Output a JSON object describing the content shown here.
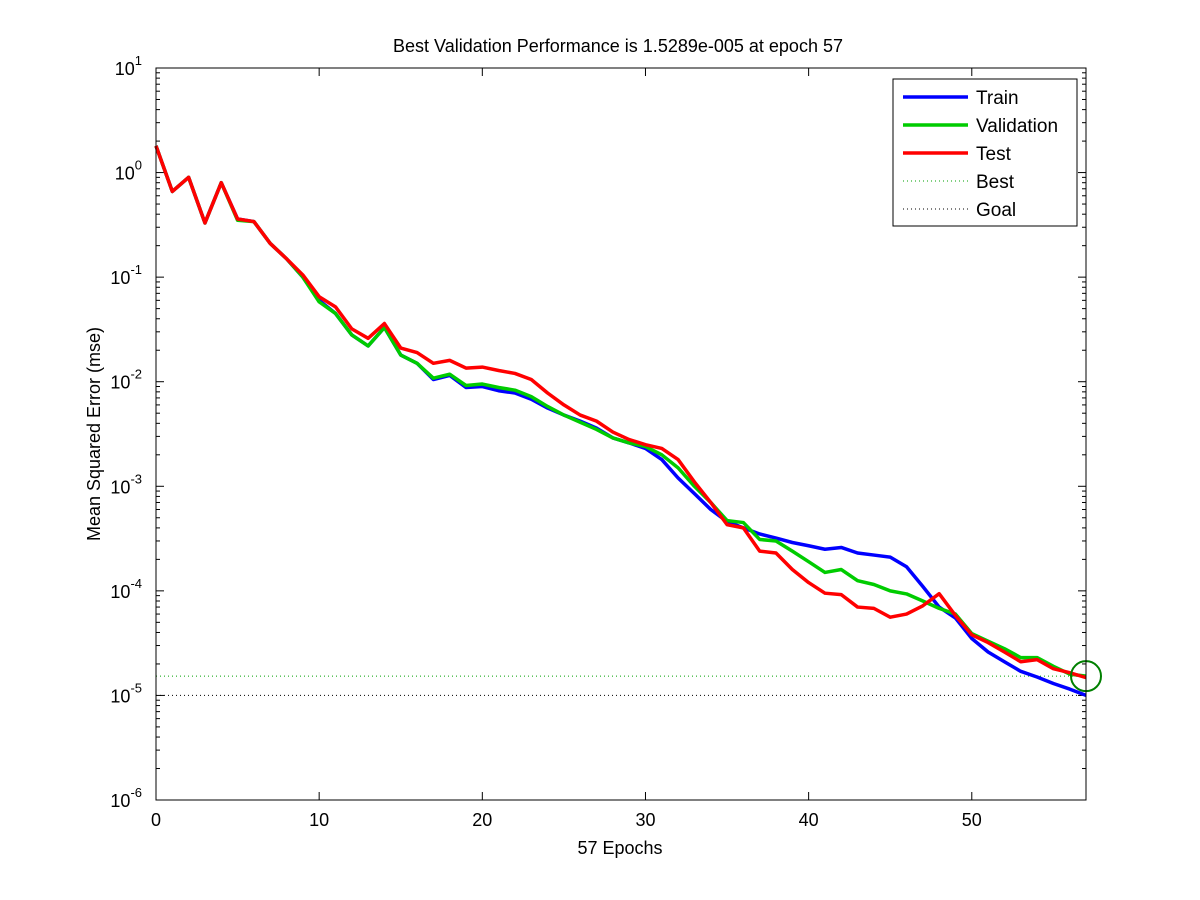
{
  "chart_data": {
    "type": "line",
    "title": "Best Validation Performance is 1.5289e-005 at epoch 57",
    "xlabel": "57 Epochs",
    "ylabel": "Mean Squared Error  (mse)",
    "xlim": [
      0,
      57
    ],
    "ylim_log10": [
      -6,
      1
    ],
    "y_scale": "log",
    "x_ticks": [
      0,
      10,
      20,
      30,
      40,
      50
    ],
    "y_tick_exponents": [
      "1",
      "0",
      "-1",
      "-2",
      "-3",
      "-4",
      "-5",
      "-6"
    ],
    "grid": false,
    "legend_location": "top-right",
    "x": [
      0,
      1,
      2,
      3,
      4,
      5,
      6,
      7,
      8,
      9,
      10,
      11,
      12,
      13,
      14,
      15,
      16,
      17,
      18,
      19,
      20,
      21,
      22,
      23,
      24,
      25,
      26,
      27,
      28,
      29,
      30,
      31,
      32,
      33,
      34,
      35,
      36,
      37,
      38,
      39,
      40,
      41,
      42,
      43,
      44,
      45,
      46,
      47,
      48,
      49,
      50,
      51,
      52,
      53,
      54,
      55,
      56,
      57
    ],
    "series": [
      {
        "name": "Train",
        "color": "#0000ff",
        "style": "solid",
        "values": [
          1.8,
          0.66,
          0.9,
          0.33,
          0.8,
          0.36,
          0.34,
          0.21,
          0.15,
          0.1,
          0.06,
          0.045,
          0.028,
          0.022,
          0.033,
          0.018,
          0.015,
          0.0105,
          0.0115,
          0.0088,
          0.009,
          0.0082,
          0.0078,
          0.0068,
          0.0056,
          0.0048,
          0.0042,
          0.0036,
          0.0029,
          0.0026,
          0.0023,
          0.0018,
          0.0012,
          0.00085,
          0.0006,
          0.00046,
          0.0004,
          0.00035,
          0.00032,
          0.00029,
          0.00027,
          0.00025,
          0.00026,
          0.00023,
          0.00022,
          0.00021,
          0.00017,
          0.00011,
          7e-05,
          5.5e-05,
          3.5e-05,
          2.6e-05,
          2.1e-05,
          1.7e-05,
          1.5e-05,
          1.3e-05,
          1.15e-05,
          1e-05
        ]
      },
      {
        "name": "Validation",
        "color": "#00cc00",
        "style": "solid",
        "values": [
          1.8,
          0.66,
          0.9,
          0.33,
          0.8,
          0.35,
          0.34,
          0.21,
          0.15,
          0.1,
          0.058,
          0.045,
          0.028,
          0.022,
          0.033,
          0.018,
          0.015,
          0.0108,
          0.0118,
          0.0092,
          0.0095,
          0.0088,
          0.0083,
          0.0072,
          0.0058,
          0.0048,
          0.0041,
          0.0035,
          0.0029,
          0.0026,
          0.0024,
          0.002,
          0.0015,
          0.001,
          0.0007,
          0.00047,
          0.00045,
          0.00031,
          0.0003,
          0.00024,
          0.00019,
          0.00015,
          0.00016,
          0.000125,
          0.000115,
          0.0001,
          9.35e-05,
          8e-05,
          6.8e-05,
          6e-05,
          3.9e-05,
          3.3e-05,
          2.8e-05,
          2.3e-05,
          2.3e-05,
          1.9e-05,
          1.6e-05,
          1.53e-05
        ]
      },
      {
        "name": "Test",
        "color": "#ff0000",
        "style": "solid",
        "values": [
          1.8,
          0.66,
          0.9,
          0.33,
          0.8,
          0.36,
          0.34,
          0.21,
          0.15,
          0.105,
          0.065,
          0.052,
          0.032,
          0.026,
          0.036,
          0.021,
          0.019,
          0.015,
          0.016,
          0.0135,
          0.0138,
          0.0128,
          0.012,
          0.0105,
          0.0078,
          0.006,
          0.0048,
          0.0042,
          0.0033,
          0.0028,
          0.0025,
          0.0023,
          0.0018,
          0.0011,
          0.0007,
          0.00043,
          0.0004,
          0.00024,
          0.00023,
          0.00016,
          0.00012,
          9.5e-05,
          9.2e-05,
          7e-05,
          6.8e-05,
          5.6e-05,
          6e-05,
          7.2e-05,
          9.4e-05,
          5.8e-05,
          3.8e-05,
          3.2e-05,
          2.6e-05,
          2.1e-05,
          2.2e-05,
          1.8e-05,
          1.65e-05,
          1.48e-05
        ]
      }
    ],
    "reference_lines": [
      {
        "name": "Best",
        "value": 1.5289e-05,
        "color": "#00a000",
        "style": "dotted"
      },
      {
        "name": "Goal",
        "value": 1e-05,
        "color": "#000000",
        "style": "dotted"
      }
    ],
    "best_marker": {
      "x": 57,
      "y": 1.5289e-05,
      "color": "#008000"
    }
  }
}
